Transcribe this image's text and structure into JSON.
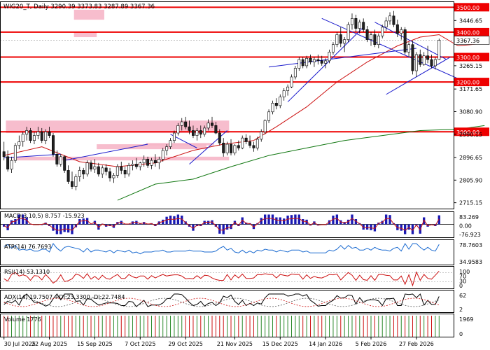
{
  "chart_data": {
    "type": "candlestick",
    "title": "WIG20_T, Daily  3290.39 3373.83 3287.89 3367.36",
    "price_axis": {
      "min": 2715.15,
      "max": 3500,
      "ticks": [
        {
          "value": 3446.65,
          "label": "3446.65"
        },
        {
          "value": 3265.15,
          "label": "3265.15"
        },
        {
          "value": 3171.65,
          "label": "3171.65"
        },
        {
          "value": 3080.9,
          "label": "3080.90"
        },
        {
          "value": 2990.15,
          "label": "2990.15"
        },
        {
          "value": 2896.65,
          "label": "2896.65"
        },
        {
          "value": 2805.9,
          "label": "2805.90"
        },
        {
          "value": 2715.15,
          "label": "2715.15"
        }
      ]
    },
    "last_price": {
      "value": 3367.36,
      "label": "3367.36"
    },
    "levels": [
      {
        "value": 3500,
        "label": "3500.00"
      },
      {
        "value": 3400,
        "label": "3400.00"
      },
      {
        "value": 3300,
        "label": "3300.00"
      },
      {
        "value": 3200,
        "label": "3200.00"
      },
      {
        "value": 3000,
        "label": "3000.00"
      }
    ],
    "date_labels": [
      "30 Jul 2025",
      "22 Aug 2025",
      "15 Sep 2025",
      "7 Oct 2025",
      "29 Oct 2025",
      "21 Nov 2025",
      "15 Dec 2025",
      "14 Jan 2026",
      "5 Feb 2026",
      "27 Feb 2026"
    ],
    "bars": [
      {
        "o": 2920,
        "h": 2960,
        "l": 2885,
        "c": 2900
      },
      {
        "o": 2900,
        "h": 2925,
        "l": 2840,
        "c": 2850
      },
      {
        "o": 2850,
        "h": 2900,
        "l": 2835,
        "c": 2885
      },
      {
        "o": 2885,
        "h": 2955,
        "l": 2875,
        "c": 2945
      },
      {
        "o": 2945,
        "h": 2985,
        "l": 2930,
        "c": 2960
      },
      {
        "o": 2960,
        "h": 3000,
        "l": 2940,
        "c": 2990
      },
      {
        "o": 2990,
        "h": 3020,
        "l": 2965,
        "c": 3005
      },
      {
        "o": 3005,
        "h": 3015,
        "l": 2955,
        "c": 2965
      },
      {
        "o": 2965,
        "h": 3000,
        "l": 2950,
        "c": 2985
      },
      {
        "o": 2985,
        "h": 3020,
        "l": 2970,
        "c": 3000
      },
      {
        "o": 3000,
        "h": 3015,
        "l": 2955,
        "c": 2965
      },
      {
        "o": 2965,
        "h": 3010,
        "l": 2950,
        "c": 3000
      },
      {
        "o": 3000,
        "h": 3020,
        "l": 2975,
        "c": 2985
      },
      {
        "o": 2985,
        "h": 2995,
        "l": 2900,
        "c": 2910
      },
      {
        "o": 2910,
        "h": 2925,
        "l": 2860,
        "c": 2870
      },
      {
        "o": 2870,
        "h": 2910,
        "l": 2860,
        "c": 2900
      },
      {
        "o": 2900,
        "h": 2905,
        "l": 2835,
        "c": 2845
      },
      {
        "o": 2845,
        "h": 2865,
        "l": 2790,
        "c": 2800
      },
      {
        "o": 2800,
        "h": 2840,
        "l": 2770,
        "c": 2780
      },
      {
        "o": 2780,
        "h": 2830,
        "l": 2765,
        "c": 2820
      },
      {
        "o": 2820,
        "h": 2860,
        "l": 2800,
        "c": 2845
      },
      {
        "o": 2845,
        "h": 2855,
        "l": 2810,
        "c": 2830
      },
      {
        "o": 2830,
        "h": 2885,
        "l": 2820,
        "c": 2875
      },
      {
        "o": 2875,
        "h": 2885,
        "l": 2840,
        "c": 2850
      },
      {
        "o": 2850,
        "h": 2890,
        "l": 2835,
        "c": 2860
      },
      {
        "o": 2860,
        "h": 2875,
        "l": 2820,
        "c": 2830
      },
      {
        "o": 2830,
        "h": 2865,
        "l": 2815,
        "c": 2855
      },
      {
        "o": 2855,
        "h": 2870,
        "l": 2825,
        "c": 2840
      },
      {
        "o": 2840,
        "h": 2855,
        "l": 2800,
        "c": 2815
      },
      {
        "o": 2815,
        "h": 2835,
        "l": 2795,
        "c": 2825
      },
      {
        "o": 2825,
        "h": 2870,
        "l": 2815,
        "c": 2860
      },
      {
        "o": 2860,
        "h": 2880,
        "l": 2830,
        "c": 2845
      },
      {
        "o": 2845,
        "h": 2860,
        "l": 2815,
        "c": 2830
      },
      {
        "o": 2830,
        "h": 2875,
        "l": 2820,
        "c": 2865
      },
      {
        "o": 2865,
        "h": 2885,
        "l": 2845,
        "c": 2870
      },
      {
        "o": 2870,
        "h": 2895,
        "l": 2850,
        "c": 2860
      },
      {
        "o": 2860,
        "h": 2880,
        "l": 2845,
        "c": 2875
      },
      {
        "o": 2875,
        "h": 2905,
        "l": 2860,
        "c": 2890
      },
      {
        "o": 2890,
        "h": 2900,
        "l": 2855,
        "c": 2865
      },
      {
        "o": 2865,
        "h": 2895,
        "l": 2850,
        "c": 2885
      },
      {
        "o": 2885,
        "h": 2910,
        "l": 2860,
        "c": 2875
      },
      {
        "o": 2875,
        "h": 2900,
        "l": 2850,
        "c": 2890
      },
      {
        "o": 2890,
        "h": 2935,
        "l": 2880,
        "c": 2925
      },
      {
        "o": 2925,
        "h": 2950,
        "l": 2905,
        "c": 2940
      },
      {
        "o": 2940,
        "h": 2975,
        "l": 2930,
        "c": 2965
      },
      {
        "o": 2965,
        "h": 3005,
        "l": 2955,
        "c": 2995
      },
      {
        "o": 2995,
        "h": 3035,
        "l": 2985,
        "c": 3025
      },
      {
        "o": 3025,
        "h": 3055,
        "l": 3005,
        "c": 3040
      },
      {
        "o": 3040,
        "h": 3060,
        "l": 3010,
        "c": 3020
      },
      {
        "o": 3020,
        "h": 3045,
        "l": 2990,
        "c": 3005
      },
      {
        "o": 3005,
        "h": 3025,
        "l": 2975,
        "c": 2985
      },
      {
        "o": 2985,
        "h": 3015,
        "l": 2965,
        "c": 3005
      },
      {
        "o": 3005,
        "h": 3025,
        "l": 2975,
        "c": 2990
      },
      {
        "o": 2990,
        "h": 3025,
        "l": 2980,
        "c": 3015
      },
      {
        "o": 3015,
        "h": 3050,
        "l": 3005,
        "c": 3035
      },
      {
        "o": 3035,
        "h": 3060,
        "l": 3015,
        "c": 3025
      },
      {
        "o": 3025,
        "h": 3040,
        "l": 2990,
        "c": 2995
      },
      {
        "o": 2995,
        "h": 3010,
        "l": 2945,
        "c": 2955
      },
      {
        "o": 2955,
        "h": 2975,
        "l": 2900,
        "c": 2915
      },
      {
        "o": 2915,
        "h": 2960,
        "l": 2905,
        "c": 2950
      },
      {
        "o": 2950,
        "h": 2970,
        "l": 2905,
        "c": 2915
      },
      {
        "o": 2915,
        "h": 2950,
        "l": 2905,
        "c": 2945
      },
      {
        "o": 2945,
        "h": 2965,
        "l": 2925,
        "c": 2935
      },
      {
        "o": 2935,
        "h": 2985,
        "l": 2930,
        "c": 2975
      },
      {
        "o": 2975,
        "h": 2990,
        "l": 2950,
        "c": 2960
      },
      {
        "o": 2960,
        "h": 2985,
        "l": 2935,
        "c": 2945
      },
      {
        "o": 2945,
        "h": 2960,
        "l": 2920,
        "c": 2935
      },
      {
        "o": 2935,
        "h": 2980,
        "l": 2925,
        "c": 2970
      },
      {
        "o": 2970,
        "h": 3010,
        "l": 2960,
        "c": 3000
      },
      {
        "o": 3000,
        "h": 3050,
        "l": 2990,
        "c": 3045
      },
      {
        "o": 3045,
        "h": 3090,
        "l": 3035,
        "c": 3080
      },
      {
        "o": 3080,
        "h": 3125,
        "l": 3070,
        "c": 3115
      },
      {
        "o": 3115,
        "h": 3135,
        "l": 3090,
        "c": 3105
      },
      {
        "o": 3105,
        "h": 3150,
        "l": 3095,
        "c": 3140
      },
      {
        "o": 3140,
        "h": 3175,
        "l": 3125,
        "c": 3165
      },
      {
        "o": 3165,
        "h": 3190,
        "l": 3145,
        "c": 3180
      },
      {
        "o": 3180,
        "h": 3230,
        "l": 3175,
        "c": 3220
      },
      {
        "o": 3220,
        "h": 3265,
        "l": 3210,
        "c": 3255
      },
      {
        "o": 3255,
        "h": 3300,
        "l": 3245,
        "c": 3290
      },
      {
        "o": 3290,
        "h": 3300,
        "l": 3255,
        "c": 3265
      },
      {
        "o": 3265,
        "h": 3305,
        "l": 3255,
        "c": 3295
      },
      {
        "o": 3295,
        "h": 3310,
        "l": 3270,
        "c": 3280
      },
      {
        "o": 3280,
        "h": 3300,
        "l": 3260,
        "c": 3290
      },
      {
        "o": 3290,
        "h": 3310,
        "l": 3270,
        "c": 3285
      },
      {
        "o": 3285,
        "h": 3305,
        "l": 3265,
        "c": 3275
      },
      {
        "o": 3275,
        "h": 3295,
        "l": 3255,
        "c": 3285
      },
      {
        "o": 3285,
        "h": 3330,
        "l": 3275,
        "c": 3320
      },
      {
        "o": 3320,
        "h": 3360,
        "l": 3310,
        "c": 3350
      },
      {
        "o": 3350,
        "h": 3400,
        "l": 3340,
        "c": 3390
      },
      {
        "o": 3390,
        "h": 3420,
        "l": 3340,
        "c": 3355
      },
      {
        "o": 3355,
        "h": 3380,
        "l": 3320,
        "c": 3370
      },
      {
        "o": 3370,
        "h": 3440,
        "l": 3360,
        "c": 3430
      },
      {
        "o": 3430,
        "h": 3475,
        "l": 3410,
        "c": 3455
      },
      {
        "o": 3455,
        "h": 3470,
        "l": 3400,
        "c": 3415
      },
      {
        "o": 3415,
        "h": 3450,
        "l": 3395,
        "c": 3440
      },
      {
        "o": 3440,
        "h": 3455,
        "l": 3400,
        "c": 3410
      },
      {
        "o": 3410,
        "h": 3425,
        "l": 3360,
        "c": 3370
      },
      {
        "o": 3370,
        "h": 3400,
        "l": 3345,
        "c": 3390
      },
      {
        "o": 3390,
        "h": 3410,
        "l": 3340,
        "c": 3350
      },
      {
        "o": 3350,
        "h": 3395,
        "l": 3335,
        "c": 3385
      },
      {
        "o": 3385,
        "h": 3430,
        "l": 3375,
        "c": 3420
      },
      {
        "o": 3420,
        "h": 3460,
        "l": 3405,
        "c": 3445
      },
      {
        "o": 3445,
        "h": 3480,
        "l": 3430,
        "c": 3465
      },
      {
        "o": 3465,
        "h": 3485,
        "l": 3420,
        "c": 3430
      },
      {
        "o": 3430,
        "h": 3450,
        "l": 3380,
        "c": 3395
      },
      {
        "o": 3395,
        "h": 3420,
        "l": 3370,
        "c": 3410
      },
      {
        "o": 3410,
        "h": 3420,
        "l": 3310,
        "c": 3320
      },
      {
        "o": 3320,
        "h": 3360,
        "l": 3300,
        "c": 3350
      },
      {
        "o": 3350,
        "h": 3365,
        "l": 3230,
        "c": 3245
      },
      {
        "o": 3245,
        "h": 3320,
        "l": 3220,
        "c": 3310
      },
      {
        "o": 3310,
        "h": 3330,
        "l": 3260,
        "c": 3270
      },
      {
        "o": 3270,
        "h": 3320,
        "l": 3265,
        "c": 3305
      },
      {
        "o": 3305,
        "h": 3345,
        "l": 3275,
        "c": 3290
      },
      {
        "o": 3290,
        "h": 3310,
        "l": 3255,
        "c": 3265
      },
      {
        "o": 3265,
        "h": 3300,
        "l": 3250,
        "c": 3290
      },
      {
        "o": 3290,
        "h": 3373.83,
        "l": 3287.89,
        "c": 3367.36
      }
    ],
    "zones": [
      {
        "t0": 19,
        "t1": 26,
        "p0": 3450,
        "p1": 3490
      },
      {
        "t0": 19,
        "t1": 24,
        "p0": 3380,
        "p1": 3400
      },
      {
        "t0": 1,
        "t1": 59,
        "p0": 2995,
        "p1": 3045
      },
      {
        "t0": 3,
        "t1": 59,
        "p0": 2885,
        "p1": 2900
      },
      {
        "t0": 38,
        "t1": 55,
        "p0": 2945,
        "p1": 2955
      },
      {
        "t0": 25,
        "t1": 53,
        "p0": 2930,
        "p1": 2950
      }
    ],
    "trendlines": [
      {
        "color": "#1a1acc",
        "pts": [
          [
            0,
            2895
          ],
          [
            15,
            2910
          ]
        ]
      },
      {
        "color": "#1a1acc",
        "pts": [
          [
            16,
            2885
          ],
          [
            38,
            2950
          ]
        ]
      },
      {
        "color": "#1a1acc",
        "pts": [
          [
            44,
            2990
          ],
          [
            51,
            2935
          ]
        ]
      },
      {
        "color": "#1a1acc",
        "pts": [
          [
            49,
            2870
          ],
          [
            59,
            3005
          ]
        ]
      },
      {
        "color": "#1a1acc",
        "pts": [
          [
            75,
            3120
          ],
          [
            95,
            3420
          ]
        ]
      },
      {
        "color": "#1a1acc",
        "pts": [
          [
            70,
            3260
          ],
          [
            109,
            3335
          ]
        ]
      },
      {
        "color": "#1a1acc",
        "pts": [
          [
            84,
            3455
          ],
          [
            122,
            3200
          ]
        ]
      },
      {
        "color": "#1a1acc",
        "pts": [
          [
            98,
            3440
          ],
          [
            117,
            3290
          ]
        ]
      },
      {
        "color": "#1a1acc",
        "pts": [
          [
            101,
            3150
          ],
          [
            118,
            3300
          ]
        ]
      }
    ],
    "moving_averages": [
      {
        "name": "MA-short",
        "color": "#cc1111",
        "pts": [
          [
            0,
            2905
          ],
          [
            10,
            2940
          ],
          [
            20,
            2880
          ],
          [
            30,
            2860
          ],
          [
            40,
            2875
          ],
          [
            50,
            2925
          ],
          [
            58,
            2950
          ],
          [
            66,
            2965
          ],
          [
            72,
            3020
          ],
          [
            80,
            3100
          ],
          [
            88,
            3200
          ],
          [
            96,
            3280
          ],
          [
            104,
            3345
          ],
          [
            110,
            3380
          ],
          [
            115,
            3390
          ],
          [
            120,
            3345
          ],
          [
            127,
            3355
          ]
        ]
      },
      {
        "name": "MA-long",
        "color": "#117711",
        "pts": [
          [
            30,
            2725
          ],
          [
            40,
            2790
          ],
          [
            50,
            2810
          ],
          [
            60,
            2860
          ],
          [
            70,
            2905
          ],
          [
            80,
            2935
          ],
          [
            90,
            2965
          ],
          [
            100,
            2985
          ],
          [
            110,
            3005
          ],
          [
            120,
            3010
          ],
          [
            127,
            3025
          ]
        ]
      }
    ],
    "macd": {
      "label": "MACD(3,10,5) 8.757 -15.923",
      "axis": [
        "83.269",
        "0.00",
        "-76.923"
      ]
    },
    "atr": {
      "label": "ATR(14) 76.7693",
      "axis": [
        "78.7603",
        "34.9583"
      ]
    },
    "rsi": {
      "label": "RSI(14) 53.1310",
      "axis": [
        "100",
        "70",
        "30",
        "0"
      ]
    },
    "adx": {
      "label": "ADX(14) 19.7507 +DI:23.3300 -DI:22.7484",
      "axis": [
        "62",
        "2"
      ]
    },
    "volume": {
      "label": "Volume 1776",
      "axis": [
        "1969",
        "0"
      ]
    },
    "colors": {
      "up": "#1a1ab3",
      "down": "#cc1111",
      "support": "#ee0000",
      "zone": "#f6b6c8",
      "trend": "#1a1acc",
      "ma_long": "#117711"
    }
  }
}
